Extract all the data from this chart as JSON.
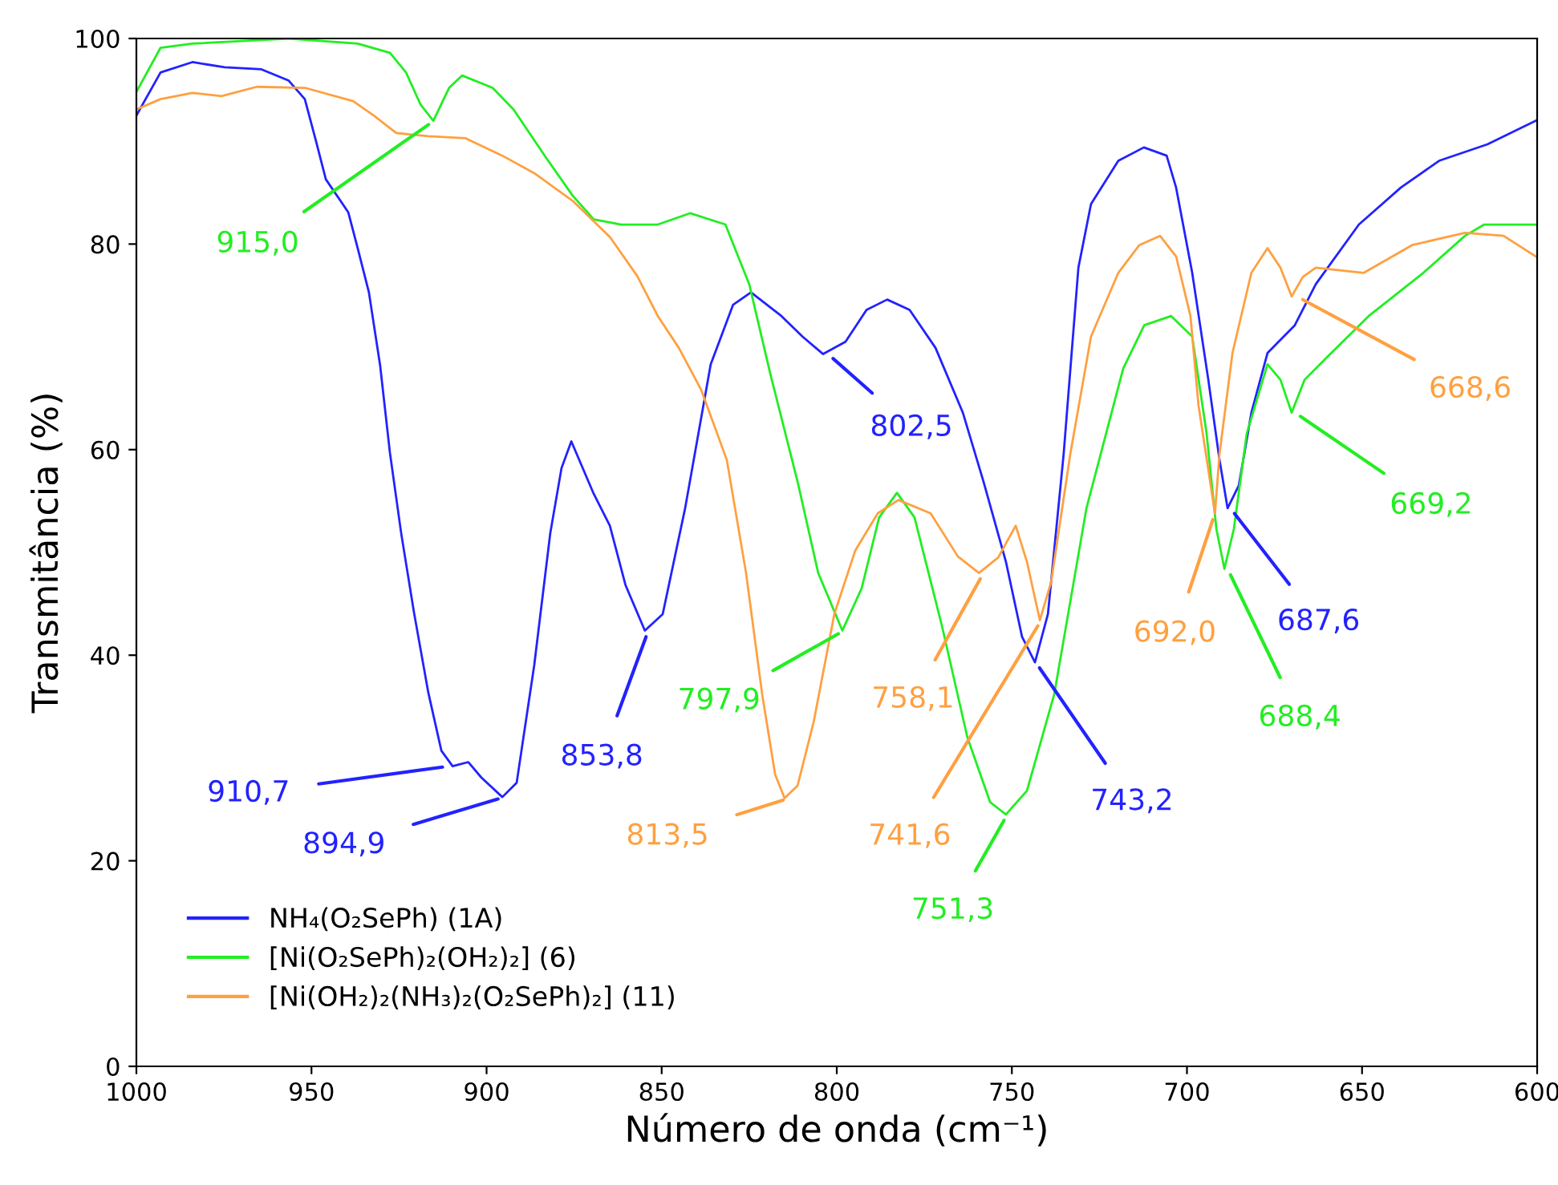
{
  "chart_data": {
    "type": "line",
    "xlabel": "Número de onda (cm⁻¹)",
    "ylabel": "Transmitância (%)",
    "xlim": [
      1000,
      600
    ],
    "xticks": [
      1000,
      950,
      900,
      850,
      800,
      750,
      700,
      650,
      600
    ],
    "ylim": [
      0,
      100
    ],
    "yticks": [
      0,
      20,
      40,
      60,
      80,
      100
    ],
    "grid": false,
    "legend": "bottom left",
    "line_style": "solid",
    "marker": "none",
    "series": [
      {
        "name": "NH₄(O₂SePh) (1A)",
        "color": "#2222ff",
        "x": [
          1000,
          993.1,
          984.0,
          974.8,
          964.3,
          956.5,
          951.9,
          948.7,
          945.9,
          939.5,
          936.8,
          933.6,
          930.4,
          927.6,
          924.4,
          920.7,
          916.6,
          912.9,
          909.7,
          905.2,
          901.5,
          895.5,
          891.4,
          886.4,
          881.8,
          878.6,
          875.8,
          869.4,
          864.8,
          860.3,
          854.8,
          849.7,
          843.3,
          836.0,
          829.6,
          824.5,
          815.8,
          809.8,
          803.9,
          797.5,
          791.5,
          785.6,
          779.2,
          771.8,
          764.0,
          758.1,
          751.7,
          747.1,
          743.4,
          739.7,
          735.2,
          731.0,
          727.4,
          719.6,
          712.3,
          705.8,
          703.1,
          698.5,
          693.9,
          690.7,
          688.4,
          685.2,
          681.6,
          677.0,
          669.2,
          663.2,
          650.9,
          638.9,
          628.0,
          614.2,
          600.4
        ],
        "values": [
          92.5,
          96.7,
          97.7,
          97.2,
          97.0,
          95.9,
          94.1,
          90.0,
          86.3,
          83.1,
          79.6,
          75.3,
          68.2,
          59.7,
          51.9,
          44.1,
          36.3,
          30.7,
          29.2,
          29.6,
          28.1,
          26.2,
          27.6,
          39.0,
          51.9,
          58.2,
          60.8,
          55.7,
          52.6,
          46.8,
          42.4,
          44.0,
          54.3,
          68.3,
          74.1,
          75.3,
          73.0,
          71.0,
          69.3,
          70.5,
          73.6,
          74.6,
          73.6,
          69.9,
          63.6,
          56.9,
          49.1,
          41.8,
          39.3,
          44.0,
          59.6,
          77.7,
          83.9,
          88.1,
          89.4,
          88.6,
          85.5,
          77.2,
          66.8,
          59.0,
          54.3,
          56.5,
          63.6,
          69.4,
          72.1,
          76.1,
          81.9,
          85.5,
          88.1,
          89.7,
          92.0
        ]
      },
      {
        "name": "[Ni(O₂SePh)₂(OH₂)₂] (6)",
        "color": "#22ee22",
        "x": [
          1000,
          993.1,
          984.0,
          956.5,
          936.8,
          927.6,
          923.0,
          918.9,
          915.2,
          910.7,
          907.0,
          898.3,
          892.3,
          883.2,
          875.4,
          869.4,
          861.6,
          851.1,
          841.9,
          831.8,
          825.0,
          819.0,
          811.2,
          805.3,
          798.4,
          792.9,
          787.9,
          782.8,
          777.8,
          770.0,
          762.7,
          756.2,
          751.7,
          745.7,
          737.9,
          728.7,
          718.2,
          712.2,
          704.5,
          698.5,
          694.4,
          691.6,
          689.3,
          686.6,
          682.9,
          677.0,
          673.3,
          670.1,
          666.4,
          660.0,
          648.1,
          632.5,
          620.6,
          615.1,
          600.4
        ],
        "values": [
          94.8,
          99.1,
          99.5,
          100.0,
          99.5,
          98.6,
          96.7,
          93.6,
          92.0,
          95.2,
          96.4,
          95.2,
          93.1,
          88.5,
          84.7,
          82.4,
          81.9,
          81.9,
          83.0,
          81.9,
          76.1,
          67.4,
          56.9,
          48.0,
          42.4,
          46.5,
          53.4,
          55.8,
          53.4,
          42.9,
          32.0,
          25.7,
          24.5,
          26.8,
          36.2,
          54.3,
          67.9,
          72.1,
          73.0,
          71.0,
          61.6,
          52.3,
          48.4,
          52.3,
          61.6,
          68.3,
          66.8,
          63.6,
          66.8,
          69.0,
          73.0,
          77.2,
          80.8,
          81.9,
          81.9
        ]
      },
      {
        "name": "[Ni(OH₂)₂(NH₃)₂(O₂SePh)₂] (11)",
        "color": "#ffa040",
        "x": [
          1000,
          993.1,
          984.0,
          975.7,
          965.6,
          951.9,
          938.1,
          932.2,
          925.8,
          916.6,
          906.1,
          895.5,
          886.4,
          875.4,
          864.8,
          857.0,
          851.1,
          845.1,
          838.7,
          831.4,
          825.9,
          821.3,
          817.6,
          814.9,
          811.2,
          806.6,
          800.7,
          794.7,
          788.3,
          782.4,
          773.2,
          765.4,
          759.4,
          753.9,
          748.9,
          745.7,
          742.0,
          738.8,
          733.3,
          727.4,
          719.6,
          713.6,
          707.7,
          703.1,
          699.0,
          696.7,
          692.0,
          690.7,
          687.0,
          681.6,
          677.0,
          673.3,
          670.1,
          666.9,
          663.2,
          649.5,
          635.7,
          620.6,
          609.6,
          600.4
        ],
        "values": [
          93.1,
          94.1,
          94.7,
          94.4,
          95.3,
          95.2,
          93.9,
          92.5,
          90.8,
          90.5,
          90.3,
          88.6,
          86.9,
          84.2,
          80.7,
          76.9,
          73.0,
          69.9,
          65.8,
          59.0,
          48.0,
          36.2,
          28.4,
          26.1,
          27.3,
          33.5,
          44.0,
          50.2,
          53.8,
          55.1,
          53.8,
          49.6,
          48.0,
          49.5,
          52.6,
          49.1,
          43.4,
          47.1,
          59.6,
          71.0,
          77.2,
          79.9,
          80.8,
          78.8,
          73.0,
          64.3,
          53.8,
          59.6,
          69.4,
          77.2,
          79.6,
          77.7,
          74.9,
          76.8,
          77.7,
          77.2,
          79.9,
          81.1,
          80.8,
          78.8
        ]
      }
    ],
    "annotations": [
      {
        "text": "915,0",
        "x": 915.0,
        "y": 92.0
      },
      {
        "text": "910,7",
        "x": 910.7,
        "y": 29.2
      },
      {
        "text": "894,9",
        "x": 894.9,
        "y": 26.2
      },
      {
        "text": "853,8",
        "x": 853.8,
        "y": 42.4
      },
      {
        "text": "813,5",
        "x": 813.5,
        "y": 26.1
      },
      {
        "text": "797,9",
        "x": 797.9,
        "y": 42.4
      },
      {
        "text": "802,5",
        "x": 802.5,
        "y": 69.3
      },
      {
        "text": "758,1",
        "x": 758.1,
        "y": 48.0
      },
      {
        "text": "741,6",
        "x": 741.6,
        "y": 43.4
      },
      {
        "text": "751,3",
        "x": 751.3,
        "y": 24.5
      },
      {
        "text": "743,2",
        "x": 743.2,
        "y": 39.3
      },
      {
        "text": "692,0",
        "x": 692.0,
        "y": 53.8
      },
      {
        "text": "688,4",
        "x": 688.4,
        "y": 48.4
      },
      {
        "text": "687,6",
        "x": 687.6,
        "y": 54.3
      },
      {
        "text": "669,2",
        "x": 669.2,
        "y": 63.6
      },
      {
        "text": "668,6",
        "x": 668.6,
        "y": 74.9
      }
    ]
  }
}
